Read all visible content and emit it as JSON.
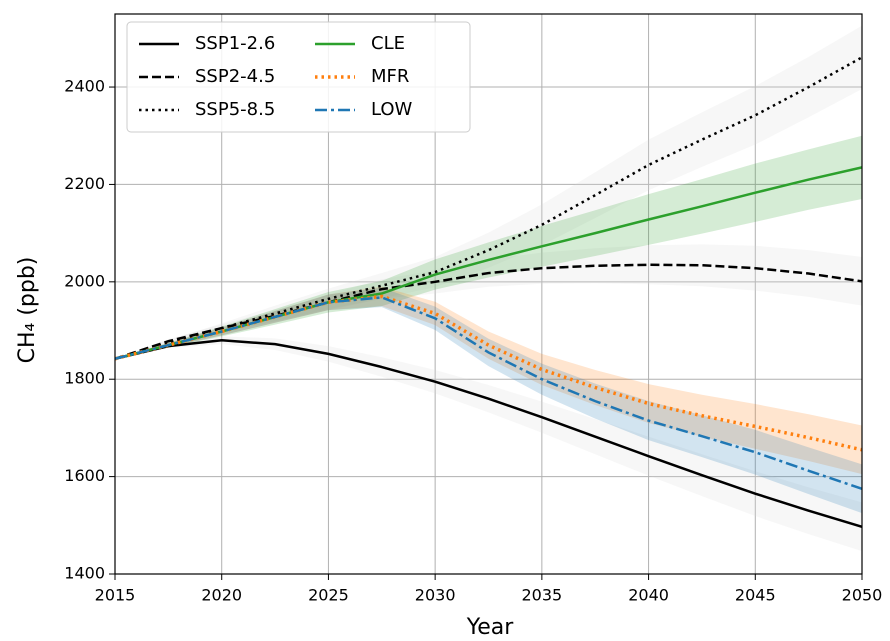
{
  "chart_data": {
    "type": "line",
    "xlabel": "Year",
    "ylabel": "CH₄ (ppb)",
    "x": [
      2015,
      2017.5,
      2020,
      2022.5,
      2025,
      2027.5,
      2030,
      2032.5,
      2035,
      2037.5,
      2040,
      2042.5,
      2045,
      2047.5,
      2050
    ],
    "xlim": [
      2015,
      2050
    ],
    "xticks": [
      2015,
      2020,
      2025,
      2030,
      2035,
      2040,
      2045,
      2050
    ],
    "ylim": [
      1400,
      2550
    ],
    "yticks": [
      1400,
      1600,
      1800,
      2000,
      2200,
      2400
    ],
    "grid": true,
    "legend": "upper left",
    "series": [
      {
        "name": "SSP1-2.6",
        "color": "#000000",
        "linestyle": "solid",
        "band_color": "#d9d9d9",
        "values": [
          1842,
          1868,
          1880,
          1872,
          1852,
          1825,
          1795,
          1760,
          1722,
          1682,
          1642,
          1603,
          1565,
          1530,
          1497
        ],
        "lower": [
          1842,
          1864,
          1872,
          1860,
          1836,
          1805,
          1771,
          1732,
          1690,
          1646,
          1602,
          1560,
          1519,
          1482,
          1447
        ],
        "upper": [
          1842,
          1872,
          1888,
          1884,
          1868,
          1845,
          1819,
          1788,
          1754,
          1718,
          1682,
          1646,
          1611,
          1578,
          1547
        ]
      },
      {
        "name": "SSP2-4.5",
        "color": "#000000",
        "linestyle": "dashed",
        "band_color": "#d9d9d9",
        "values": [
          1842,
          1878,
          1905,
          1930,
          1958,
          1985,
          2000,
          2018,
          2028,
          2033,
          2035,
          2034,
          2028,
          2017,
          2001
        ],
        "lower": [
          1842,
          1874,
          1897,
          1918,
          1942,
          1965,
          1976,
          1990,
          1996,
          1997,
          1995,
          1991,
          1982,
          1969,
          1951
        ],
        "upper": [
          1842,
          1882,
          1913,
          1942,
          1974,
          2005,
          2024,
          2046,
          2060,
          2069,
          2075,
          2077,
          2074,
          2065,
          2051
        ]
      },
      {
        "name": "SSP5-8.5",
        "color": "#000000",
        "linestyle": "dotted",
        "band_color": "#d9d9d9",
        "values": [
          1842,
          1875,
          1905,
          1935,
          1965,
          1992,
          2020,
          2065,
          2117,
          2178,
          2240,
          2292,
          2342,
          2400,
          2461
        ],
        "lower": [
          1842,
          1870,
          1895,
          1919,
          1944,
          1966,
          1989,
          2029,
          2075,
          2131,
          2188,
          2236,
          2282,
          2338,
          2396
        ],
        "upper": [
          1842,
          1880,
          1915,
          1951,
          1986,
          2018,
          2051,
          2101,
          2159,
          2225,
          2292,
          2348,
          2402,
          2462,
          2526
        ]
      },
      {
        "name": "CLE",
        "color": "#2ca02c",
        "linestyle": "solid",
        "band_color": "#2ca02c",
        "values": [
          1842,
          1870,
          1898,
          1928,
          1958,
          1976,
          2015,
          2045,
          2073,
          2100,
          2128,
          2155,
          2183,
          2210,
          2235
        ],
        "lower": [
          1842,
          1865,
          1888,
          1912,
          1937,
          1950,
          1984,
          2009,
          2031,
          2053,
          2076,
          2099,
          2123,
          2148,
          2170
        ],
        "upper": [
          1842,
          1875,
          1908,
          1944,
          1979,
          2002,
          2046,
          2081,
          2115,
          2147,
          2180,
          2211,
          2243,
          2272,
          2300
        ]
      },
      {
        "name": "MFR",
        "color": "#ff7f0e",
        "linestyle": "dotted",
        "band_color": "#ff7f0e",
        "values": [
          1842,
          1870,
          1898,
          1928,
          1958,
          1970,
          1935,
          1870,
          1820,
          1783,
          1750,
          1725,
          1703,
          1680,
          1655
        ],
        "lower": [
          1842,
          1866,
          1890,
          1916,
          1942,
          1950,
          1911,
          1842,
          1788,
          1747,
          1710,
          1682,
          1657,
          1632,
          1605
        ],
        "upper": [
          1842,
          1874,
          1906,
          1940,
          1974,
          1990,
          1959,
          1898,
          1852,
          1819,
          1790,
          1768,
          1749,
          1728,
          1705
        ]
      },
      {
        "name": "LOW",
        "color": "#1f77b4",
        "linestyle": "dashdot",
        "band_color": "#1f77b4",
        "values": [
          1842,
          1870,
          1898,
          1928,
          1958,
          1968,
          1925,
          1855,
          1800,
          1755,
          1715,
          1683,
          1650,
          1612,
          1575
        ],
        "lower": [
          1842,
          1866,
          1890,
          1916,
          1942,
          1948,
          1901,
          1827,
          1768,
          1719,
          1675,
          1640,
          1604,
          1564,
          1525
        ],
        "upper": [
          1842,
          1874,
          1906,
          1940,
          1974,
          1988,
          1949,
          1883,
          1832,
          1791,
          1755,
          1726,
          1696,
          1660,
          1625
        ]
      }
    ]
  }
}
